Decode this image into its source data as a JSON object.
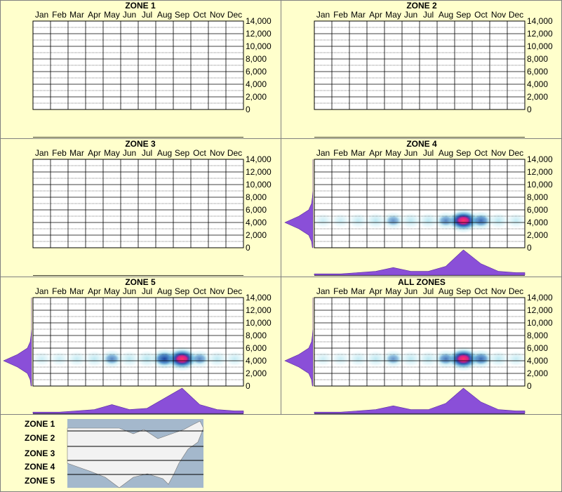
{
  "chart_data": [
    {
      "type": "density",
      "title": "ZONE 1",
      "categories": [
        "Jan",
        "Feb",
        "Mar",
        "Apr",
        "May",
        "Jun",
        "Jul",
        "Aug",
        "Sep",
        "Oct",
        "Nov",
        "Dec"
      ],
      "ylim": [
        0,
        14000
      ],
      "yticks": [
        {
          "value": 0,
          "label": "0"
        },
        {
          "value": 2000,
          "label": "2,000"
        },
        {
          "value": 4000,
          "label": "4,000"
        },
        {
          "value": 6000,
          "label": "6,000"
        },
        {
          "value": 8000,
          "label": "8,000"
        },
        {
          "value": 10000,
          "label": "10,000"
        },
        {
          "value": 12000,
          "label": "12,000"
        },
        {
          "value": 14000,
          "label": "14,000"
        }
      ],
      "minor_yticks": [
        1000,
        3000,
        5000,
        7000,
        9000,
        11000,
        13000
      ]
    },
    {
      "type": "density",
      "title": "ZONE 2",
      "categories": [
        "Jan",
        "Feb",
        "Mar",
        "Apr",
        "May",
        "Jun",
        "Jul",
        "Aug",
        "Sep",
        "Oct",
        "Nov",
        "Dec"
      ],
      "ylim": [
        0,
        14000
      ],
      "yticks": [
        {
          "value": 0,
          "label": "0"
        },
        {
          "value": 2000,
          "label": "2,000"
        },
        {
          "value": 4000,
          "label": "4,000"
        },
        {
          "value": 6000,
          "label": "6,000"
        },
        {
          "value": 8000,
          "label": "8,000"
        },
        {
          "value": 10000,
          "label": "10,000"
        },
        {
          "value": 12000,
          "label": "12,000"
        },
        {
          "value": 14000,
          "label": "14,000"
        }
      ],
      "minor_yticks": [
        1000,
        3000,
        5000,
        7000,
        9000,
        11000,
        13000
      ]
    },
    {
      "type": "density",
      "title": "ZONE 3",
      "categories": [
        "Jan",
        "Feb",
        "Mar",
        "Apr",
        "May",
        "Jun",
        "Jul",
        "Aug",
        "Sep",
        "Oct",
        "Nov",
        "Dec"
      ],
      "ylim": [
        0,
        14000
      ],
      "yticks": [
        {
          "value": 0,
          "label": "0"
        },
        {
          "value": 2000,
          "label": "2,000"
        },
        {
          "value": 4000,
          "label": "4,000"
        },
        {
          "value": 6000,
          "label": "6,000"
        },
        {
          "value": 8000,
          "label": "8,000"
        },
        {
          "value": 10000,
          "label": "10,000"
        },
        {
          "value": 12000,
          "label": "12,000"
        },
        {
          "value": 14000,
          "label": "14,000"
        }
      ],
      "minor_yticks": [
        1000,
        3000,
        5000,
        7000,
        9000,
        11000,
        13000
      ]
    },
    {
      "type": "density",
      "title": "ZONE 4",
      "categories": [
        "Jan",
        "Feb",
        "Mar",
        "Apr",
        "May",
        "Jun",
        "Jul",
        "Aug",
        "Sep",
        "Oct",
        "Nov",
        "Dec"
      ],
      "ylim": [
        0,
        14000
      ],
      "yticks": [
        {
          "value": 0,
          "label": "0"
        },
        {
          "value": 2000,
          "label": "2,000"
        },
        {
          "value": 4000,
          "label": "4,000"
        },
        {
          "value": 6000,
          "label": "6,000"
        },
        {
          "value": 8000,
          "label": "8,000"
        },
        {
          "value": 10000,
          "label": "10,000"
        },
        {
          "value": 12000,
          "label": "12,000"
        },
        {
          "value": 14000,
          "label": "14,000"
        }
      ],
      "minor_yticks": [
        1000,
        3000,
        5000,
        7000,
        9000,
        11000,
        13000
      ],
      "center_value": 4300,
      "month_density": [
        0.05,
        0.05,
        0.1,
        0.15,
        0.3,
        0.15,
        0.15,
        0.35,
        1.0,
        0.45,
        0.15,
        0.1
      ],
      "levels": [
        0,
        1000,
        2000,
        3000,
        4000,
        5000,
        6000,
        7000,
        8000,
        9000,
        10000,
        11000,
        12000,
        13000,
        14000
      ],
      "level_density": [
        0.02,
        0.05,
        0.15,
        0.5,
        1.0,
        0.5,
        0.15,
        0.05,
        0.02,
        0,
        0,
        0,
        0,
        0,
        0
      ]
    },
    {
      "type": "density",
      "title": "ZONE 5",
      "categories": [
        "Jan",
        "Feb",
        "Mar",
        "Apr",
        "May",
        "Jun",
        "Jul",
        "Aug",
        "Sep",
        "Oct",
        "Nov",
        "Dec"
      ],
      "ylim": [
        0,
        14000
      ],
      "yticks": [
        {
          "value": 0,
          "label": "0"
        },
        {
          "value": 2000,
          "label": "2,000"
        },
        {
          "value": 4000,
          "label": "4,000"
        },
        {
          "value": 6000,
          "label": "6,000"
        },
        {
          "value": 8000,
          "label": "8,000"
        },
        {
          "value": 10000,
          "label": "10,000"
        },
        {
          "value": 12000,
          "label": "12,000"
        },
        {
          "value": 14000,
          "label": "14,000"
        }
      ],
      "minor_yticks": [
        1000,
        3000,
        5000,
        7000,
        9000,
        11000,
        13000
      ],
      "center_value": 4300,
      "month_density": [
        0.05,
        0.05,
        0.1,
        0.15,
        0.35,
        0.15,
        0.2,
        0.6,
        1.0,
        0.35,
        0.15,
        0.1
      ],
      "levels": [
        0,
        1000,
        2000,
        3000,
        4000,
        5000,
        6000,
        7000,
        8000,
        9000,
        10000,
        11000,
        12000,
        13000,
        14000
      ],
      "level_density": [
        0.02,
        0.05,
        0.15,
        0.5,
        1.0,
        0.5,
        0.15,
        0.05,
        0.02,
        0,
        0,
        0,
        0,
        0,
        0
      ]
    },
    {
      "type": "density",
      "title": "ALL ZONES",
      "categories": [
        "Jan",
        "Feb",
        "Mar",
        "Apr",
        "May",
        "Jun",
        "Jul",
        "Aug",
        "Sep",
        "Oct",
        "Nov",
        "Dec"
      ],
      "ylim": [
        0,
        14000
      ],
      "yticks": [
        {
          "value": 0,
          "label": "0"
        },
        {
          "value": 2000,
          "label": "2,000"
        },
        {
          "value": 4000,
          "label": "4,000"
        },
        {
          "value": 6000,
          "label": "6,000"
        },
        {
          "value": 8000,
          "label": "8,000"
        },
        {
          "value": 10000,
          "label": "10,000"
        },
        {
          "value": 12000,
          "label": "12,000"
        },
        {
          "value": 14000,
          "label": "14,000"
        }
      ],
      "minor_yticks": [
        1000,
        3000,
        5000,
        7000,
        9000,
        11000,
        13000
      ],
      "center_value": 4300,
      "month_density": [
        0.05,
        0.05,
        0.1,
        0.15,
        0.3,
        0.15,
        0.15,
        0.4,
        1.0,
        0.45,
        0.15,
        0.1
      ],
      "levels": [
        0,
        1000,
        2000,
        3000,
        4000,
        5000,
        6000,
        7000,
        8000,
        9000,
        10000,
        11000,
        12000,
        13000,
        14000
      ],
      "level_density": [
        0.02,
        0.05,
        0.15,
        0.5,
        1.0,
        0.5,
        0.15,
        0.05,
        0.02,
        0,
        0,
        0,
        0,
        0,
        0
      ]
    }
  ],
  "legend": {
    "zones": [
      "ZONE 1",
      "ZONE 2",
      "ZONE 3",
      "ZONE 4",
      "ZONE 5"
    ]
  }
}
